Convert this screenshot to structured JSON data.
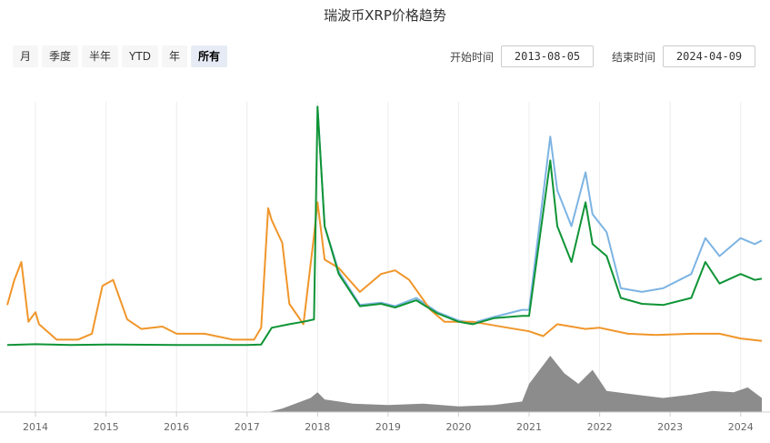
{
  "title": "瑞波币XRP价格趋势",
  "range_buttons": [
    "月",
    "季度",
    "半年",
    "YTD",
    "年",
    "所有"
  ],
  "active_range": "所有",
  "date_range": {
    "start_label": "开始时间",
    "start_value": "2013-08-05",
    "end_label": "结束时间",
    "end_value": "2024-04-09"
  },
  "colors": {
    "orange": "#f0962a",
    "green": "#0f9436",
    "blue": "#7db4e3",
    "volume": "#8c8c8c"
  },
  "chart_data": {
    "type": "line",
    "x_range": [
      2013.6,
      2024.3
    ],
    "x_ticks": [
      "2014",
      "2015",
      "2016",
      "2017",
      "2018",
      "2019",
      "2020",
      "2021",
      "2022",
      "2023",
      "2024"
    ],
    "grid": true,
    "legend": "none",
    "series": [
      {
        "key": "orange",
        "points": [
          [
            2013.6,
            0.34
          ],
          [
            2013.7,
            0.55
          ],
          [
            2013.8,
            0.7
          ],
          [
            2013.9,
            0.2
          ],
          [
            2014.0,
            0.28
          ],
          [
            2014.05,
            0.18
          ],
          [
            2014.3,
            0.05
          ],
          [
            2014.6,
            0.05
          ],
          [
            2014.8,
            0.1
          ],
          [
            2014.95,
            0.5
          ],
          [
            2015.1,
            0.55
          ],
          [
            2015.3,
            0.22
          ],
          [
            2015.5,
            0.14
          ],
          [
            2015.8,
            0.16
          ],
          [
            2016.0,
            0.1
          ],
          [
            2016.4,
            0.1
          ],
          [
            2016.8,
            0.05
          ],
          [
            2017.1,
            0.05
          ],
          [
            2017.2,
            0.15
          ],
          [
            2017.3,
            1.15
          ],
          [
            2017.35,
            1.05
          ],
          [
            2017.5,
            0.86
          ],
          [
            2017.6,
            0.35
          ],
          [
            2017.8,
            0.18
          ],
          [
            2017.95,
            0.92
          ],
          [
            2018.0,
            1.2
          ],
          [
            2018.1,
            0.72
          ],
          [
            2018.3,
            0.65
          ],
          [
            2018.6,
            0.45
          ],
          [
            2018.9,
            0.6
          ],
          [
            2019.1,
            0.63
          ],
          [
            2019.3,
            0.55
          ],
          [
            2019.6,
            0.3
          ],
          [
            2019.8,
            0.2
          ],
          [
            2020.2,
            0.2
          ],
          [
            2020.7,
            0.15
          ],
          [
            2021.0,
            0.12
          ],
          [
            2021.2,
            0.08
          ],
          [
            2021.4,
            0.18
          ],
          [
            2021.8,
            0.14
          ],
          [
            2022.0,
            0.15
          ],
          [
            2022.4,
            0.1
          ],
          [
            2022.8,
            0.09
          ],
          [
            2023.3,
            0.1
          ],
          [
            2023.7,
            0.1
          ],
          [
            2024.0,
            0.06
          ],
          [
            2024.3,
            0.04
          ]
        ]
      },
      {
        "key": "green",
        "points": [
          [
            2013.6,
            0.005
          ],
          [
            2014.0,
            0.012
          ],
          [
            2014.5,
            0.005
          ],
          [
            2015.0,
            0.01
          ],
          [
            2016.0,
            0.006
          ],
          [
            2017.0,
            0.006
          ],
          [
            2017.2,
            0.01
          ],
          [
            2017.35,
            0.15
          ],
          [
            2017.6,
            0.18
          ],
          [
            2017.8,
            0.2
          ],
          [
            2017.95,
            0.22
          ],
          [
            2018.0,
            2.0
          ],
          [
            2018.1,
            1.0
          ],
          [
            2018.3,
            0.6
          ],
          [
            2018.6,
            0.33
          ],
          [
            2018.9,
            0.35
          ],
          [
            2019.1,
            0.32
          ],
          [
            2019.4,
            0.38
          ],
          [
            2019.7,
            0.27
          ],
          [
            2020.0,
            0.2
          ],
          [
            2020.2,
            0.18
          ],
          [
            2020.5,
            0.23
          ],
          [
            2020.9,
            0.25
          ],
          [
            2021.0,
            0.25
          ],
          [
            2021.3,
            1.55
          ],
          [
            2021.4,
            1.0
          ],
          [
            2021.6,
            0.7
          ],
          [
            2021.8,
            1.2
          ],
          [
            2021.9,
            0.85
          ],
          [
            2022.1,
            0.75
          ],
          [
            2022.3,
            0.4
          ],
          [
            2022.6,
            0.35
          ],
          [
            2022.9,
            0.34
          ],
          [
            2023.3,
            0.4
          ],
          [
            2023.5,
            0.7
          ],
          [
            2023.7,
            0.52
          ],
          [
            2024.0,
            0.6
          ],
          [
            2024.2,
            0.55
          ],
          [
            2024.3,
            0.56
          ]
        ]
      },
      {
        "key": "blue",
        "points": [
          [
            2018.0,
            2.0
          ],
          [
            2018.1,
            1.0
          ],
          [
            2018.3,
            0.62
          ],
          [
            2018.6,
            0.34
          ],
          [
            2018.9,
            0.36
          ],
          [
            2019.1,
            0.33
          ],
          [
            2019.4,
            0.4
          ],
          [
            2019.7,
            0.28
          ],
          [
            2020.0,
            0.21
          ],
          [
            2020.2,
            0.19
          ],
          [
            2020.5,
            0.24
          ],
          [
            2020.9,
            0.3
          ],
          [
            2021.0,
            0.3
          ],
          [
            2021.3,
            1.75
          ],
          [
            2021.4,
            1.3
          ],
          [
            2021.6,
            1.0
          ],
          [
            2021.8,
            1.45
          ],
          [
            2021.9,
            1.1
          ],
          [
            2022.1,
            0.95
          ],
          [
            2022.3,
            0.48
          ],
          [
            2022.6,
            0.45
          ],
          [
            2022.9,
            0.48
          ],
          [
            2023.3,
            0.6
          ],
          [
            2023.5,
            0.9
          ],
          [
            2023.7,
            0.75
          ],
          [
            2024.0,
            0.9
          ],
          [
            2024.2,
            0.85
          ],
          [
            2024.3,
            0.88
          ]
        ]
      }
    ],
    "volume": {
      "points": [
        [
          2013.6,
          0.0
        ],
        [
          2017.3,
          0.0
        ],
        [
          2017.5,
          0.05
        ],
        [
          2017.9,
          0.2
        ],
        [
          2018.0,
          0.28
        ],
        [
          2018.1,
          0.18
        ],
        [
          2018.5,
          0.12
        ],
        [
          2019.0,
          0.1
        ],
        [
          2019.5,
          0.12
        ],
        [
          2020.0,
          0.08
        ],
        [
          2020.5,
          0.1
        ],
        [
          2020.9,
          0.15
        ],
        [
          2021.0,
          0.4
        ],
        [
          2021.3,
          0.8
        ],
        [
          2021.5,
          0.55
        ],
        [
          2021.7,
          0.4
        ],
        [
          2021.9,
          0.6
        ],
        [
          2022.1,
          0.3
        ],
        [
          2022.5,
          0.25
        ],
        [
          2022.9,
          0.2
        ],
        [
          2023.3,
          0.25
        ],
        [
          2023.6,
          0.3
        ],
        [
          2023.9,
          0.28
        ],
        [
          2024.1,
          0.35
        ],
        [
          2024.3,
          0.2
        ]
      ]
    }
  }
}
